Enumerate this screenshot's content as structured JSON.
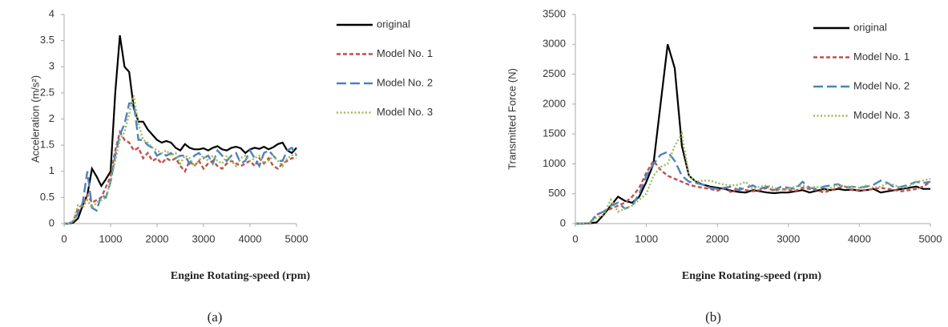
{
  "chart_data": [
    {
      "type": "line",
      "x_label": "Engine Rotating-speed (rpm)",
      "y_label": "Acceleration (m/s²)",
      "caption": "(a)",
      "legend": "right",
      "x": [
        0,
        100,
        200,
        300,
        400,
        500,
        600,
        700,
        800,
        900,
        1000,
        1100,
        1200,
        1300,
        1400,
        1500,
        1600,
        1700,
        1800,
        1900,
        2000,
        2100,
        2200,
        2300,
        2400,
        2500,
        2600,
        2700,
        2800,
        2900,
        3000,
        3100,
        3200,
        3300,
        3400,
        3500,
        3600,
        3700,
        3800,
        3900,
        4000,
        4100,
        4200,
        4300,
        4400,
        4500,
        4600,
        4700,
        4800,
        4900,
        5000
      ],
      "xlim": [
        0,
        5000
      ],
      "xticks": [
        0,
        1000,
        2000,
        3000,
        4000,
        5000
      ],
      "ylim": [
        0,
        4
      ],
      "yticks": [
        0,
        0.5,
        1,
        1.5,
        2,
        2.5,
        3,
        3.5,
        4
      ],
      "series": [
        {
          "name": "original",
          "color": "#000000",
          "dash": "solid",
          "values": [
            0,
            0,
            0.02,
            0.1,
            0.35,
            0.55,
            1.05,
            0.9,
            0.72,
            0.85,
            1.0,
            2.5,
            3.6,
            3.0,
            2.9,
            2.2,
            1.95,
            1.95,
            1.8,
            1.7,
            1.6,
            1.55,
            1.58,
            1.55,
            1.45,
            1.4,
            1.52,
            1.45,
            1.42,
            1.42,
            1.44,
            1.4,
            1.45,
            1.48,
            1.42,
            1.4,
            1.45,
            1.47,
            1.44,
            1.35,
            1.42,
            1.45,
            1.43,
            1.47,
            1.42,
            1.46,
            1.52,
            1.55,
            1.4,
            1.35,
            1.45
          ]
        },
        {
          "name": "Model No. 1",
          "color": "#c0504d",
          "dash": "dash",
          "values": [
            0,
            0,
            0.05,
            0.3,
            0.35,
            0.55,
            0.4,
            0.45,
            0.5,
            0.7,
            0.9,
            1.4,
            1.75,
            1.6,
            1.55,
            1.4,
            1.45,
            1.25,
            1.35,
            1.2,
            1.25,
            1.15,
            1.25,
            1.2,
            1.25,
            1.1,
            1.0,
            1.2,
            1.1,
            1.2,
            1.05,
            1.15,
            1.2,
            1.1,
            1.05,
            1.15,
            1.2,
            1.15,
            1.1,
            1.15,
            1.2,
            1.1,
            1.25,
            1.15,
            1.25,
            1.1,
            1.05,
            1.15,
            1.2,
            1.25,
            1.25
          ]
        },
        {
          "name": "Model No. 2",
          "color": "#4f81bd",
          "dash": "longdash",
          "values": [
            0,
            0,
            0.05,
            0.2,
            0.4,
            1.0,
            0.3,
            0.25,
            0.55,
            0.5,
            0.8,
            1.3,
            1.7,
            1.9,
            2.3,
            2.3,
            1.6,
            1.6,
            1.5,
            1.45,
            1.3,
            1.35,
            1.3,
            1.35,
            1.25,
            1.3,
            1.3,
            1.15,
            1.3,
            1.35,
            1.25,
            1.3,
            1.15,
            1.4,
            1.3,
            1.2,
            1.3,
            1.35,
            1.15,
            1.2,
            1.4,
            1.25,
            1.1,
            1.35,
            1.4,
            1.3,
            1.2,
            1.2,
            1.4,
            1.45,
            1.3
          ]
        },
        {
          "name": "Model No. 3",
          "color": "#9bbb59",
          "dash": "dot",
          "values": [
            0,
            0,
            0.05,
            0.35,
            0.3,
            0.45,
            0.3,
            0.4,
            0.45,
            0.5,
            0.8,
            1.2,
            1.6,
            1.75,
            2.1,
            2.45,
            1.9,
            1.6,
            1.55,
            1.45,
            1.4,
            1.35,
            1.4,
            1.3,
            1.35,
            1.15,
            1.3,
            1.25,
            1.1,
            1.2,
            1.3,
            1.2,
            1.3,
            1.2,
            1.15,
            1.3,
            1.2,
            1.1,
            1.25,
            1.3,
            1.2,
            1.25,
            1.3,
            1.15,
            1.2,
            1.3,
            1.2,
            1.1,
            1.25,
            1.3,
            1.35
          ]
        }
      ]
    },
    {
      "type": "line",
      "x_label": "Engine Rotating-speed (rpm)",
      "y_label": "Transmitted Force (N)",
      "caption": "(b)",
      "legend": "right",
      "x": [
        0,
        100,
        200,
        300,
        400,
        500,
        600,
        700,
        800,
        900,
        1000,
        1100,
        1200,
        1300,
        1400,
        1500,
        1600,
        1700,
        1800,
        1900,
        2000,
        2100,
        2200,
        2300,
        2400,
        2500,
        2600,
        2700,
        2800,
        2900,
        3000,
        3100,
        3200,
        3300,
        3400,
        3500,
        3600,
        3700,
        3800,
        3900,
        4000,
        4100,
        4200,
        4300,
        4400,
        4500,
        4600,
        4700,
        4800,
        4900,
        5000
      ],
      "xlim": [
        0,
        5000
      ],
      "xticks": [
        0,
        1000,
        2000,
        3000,
        4000,
        5000
      ],
      "ylim": [
        0,
        3500
      ],
      "yticks": [
        0,
        500,
        1000,
        1500,
        2000,
        2500,
        3000,
        3500
      ],
      "series": [
        {
          "name": "original",
          "color": "#000000",
          "dash": "solid",
          "values": [
            0,
            0,
            5,
            20,
            150,
            300,
            450,
            380,
            350,
            450,
            700,
            1000,
            2000,
            3000,
            2600,
            1300,
            800,
            700,
            650,
            620,
            600,
            580,
            550,
            530,
            520,
            560,
            540,
            520,
            510,
            520,
            520,
            540,
            560,
            520,
            550,
            580,
            560,
            580,
            560,
            570,
            550,
            560,
            580,
            520,
            540,
            560,
            580,
            600,
            620,
            580,
            580
          ]
        },
        {
          "name": "Model No. 1",
          "color": "#c0504d",
          "dash": "dash",
          "values": [
            0,
            0,
            5,
            150,
            200,
            250,
            300,
            350,
            450,
            600,
            850,
            1050,
            900,
            800,
            750,
            700,
            650,
            620,
            600,
            580,
            550,
            600,
            520,
            600,
            560,
            540,
            560,
            600,
            550,
            580,
            560,
            550,
            600,
            580,
            560,
            520,
            560,
            600,
            620,
            560,
            560,
            560,
            580,
            600,
            580,
            560,
            540,
            560,
            580,
            620,
            700
          ]
        },
        {
          "name": "Model No. 2",
          "color": "#4f81bd",
          "dash": "longdash",
          "values": [
            0,
            0,
            5,
            150,
            200,
            300,
            350,
            250,
            300,
            500,
            800,
            1000,
            1150,
            1200,
            1050,
            800,
            700,
            680,
            650,
            600,
            580,
            600,
            620,
            560,
            600,
            640,
            580,
            620,
            560,
            620,
            600,
            580,
            700,
            600,
            580,
            620,
            640,
            660,
            600,
            620,
            600,
            620,
            650,
            720,
            680,
            600,
            620,
            650,
            700,
            680,
            700
          ]
        },
        {
          "name": "Model No. 3",
          "color": "#9bbb59",
          "dash": "dot",
          "values": [
            0,
            0,
            5,
            100,
            150,
            400,
            200,
            250,
            300,
            400,
            500,
            800,
            950,
            1000,
            1300,
            1500,
            800,
            700,
            720,
            720,
            680,
            650,
            640,
            650,
            700,
            580,
            620,
            640,
            600,
            560,
            580,
            620,
            640,
            600,
            620,
            560,
            600,
            650,
            620,
            620,
            600,
            640,
            600,
            620,
            680,
            640,
            600,
            620,
            700,
            720,
            750
          ]
        }
      ]
    }
  ]
}
